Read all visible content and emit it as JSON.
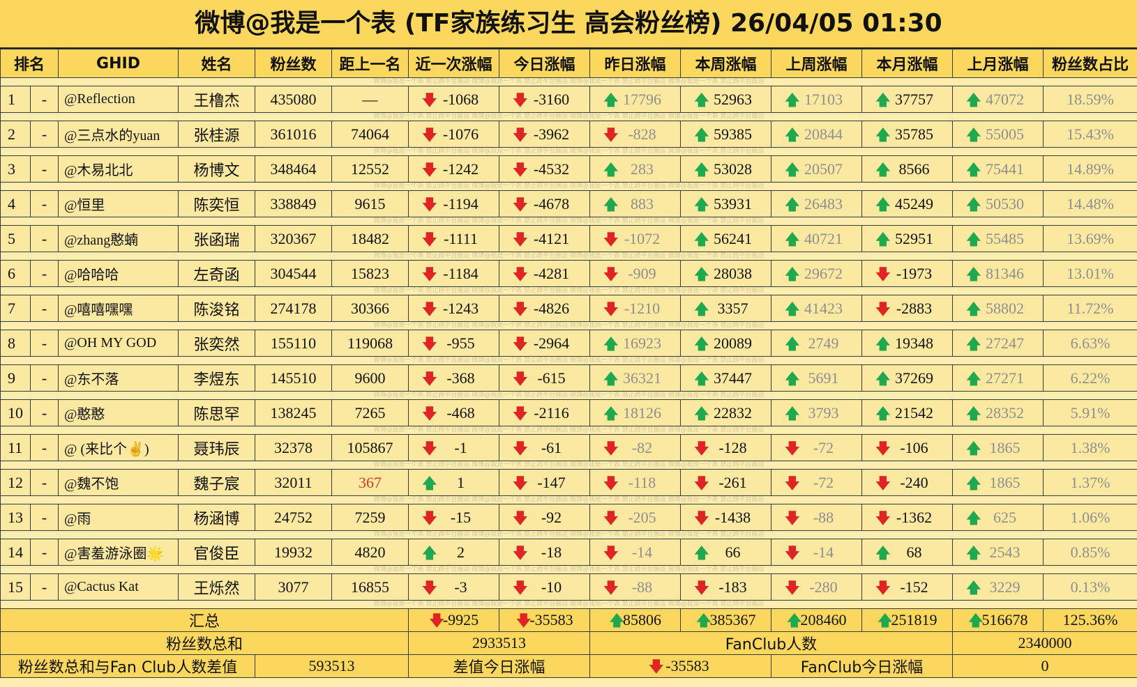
{
  "title": "微博@我是一个表 (TF家族练习生 高会粉丝榜)  26/04/05 01:30",
  "headers": [
    "排名",
    "GHID",
    "姓名",
    "粉丝数",
    "距上一名",
    "近一次涨幅",
    "今日涨幅",
    "昨日涨幅",
    "本周涨幅",
    "上周涨幅",
    "本月涨幅",
    "上月涨幅",
    "粉丝数占比"
  ],
  "watermark": "微博@我是一个表     禁止跨平台搬运     微博@我是一个表     禁止跨平台搬运     微博@我是一个表     禁止跨平台搬运     微博@我是一个表     禁止跨平台搬运",
  "rows": [
    {
      "rank": "1",
      "change": "-",
      "ghid": "@Reflection",
      "name": "王橹杰",
      "fans": "435080",
      "gap": "—",
      "recent": "-1068",
      "today": "-3160",
      "yesterday": "17796",
      "week": "52963",
      "last_week": "17103",
      "month": "37757",
      "last_month": "47072",
      "share": "18.59%"
    },
    {
      "rank": "2",
      "change": "-",
      "ghid": "@三点水的yuan",
      "name": "张桂源",
      "fans": "361016",
      "gap": "74064",
      "recent": "-1076",
      "today": "-3962",
      "yesterday": "-828",
      "week": "59385",
      "last_week": "20844",
      "month": "35785",
      "last_month": "55005",
      "share": "15.43%"
    },
    {
      "rank": "3",
      "change": "-",
      "ghid": "@木易北北",
      "name": "杨博文",
      "fans": "348464",
      "gap": "12552",
      "recent": "-1242",
      "today": "-4532",
      "yesterday": "283",
      "week": "53028",
      "last_week": "20507",
      "month": "8566",
      "last_month": "75441",
      "share": "14.89%"
    },
    {
      "rank": "4",
      "change": "-",
      "ghid": "@恒里",
      "name": "陈奕恒",
      "fans": "338849",
      "gap": "9615",
      "recent": "-1194",
      "today": "-4678",
      "yesterday": "883",
      "week": "53931",
      "last_week": "26483",
      "month": "45249",
      "last_month": "50530",
      "share": "14.48%"
    },
    {
      "rank": "5",
      "change": "-",
      "ghid": "@zhang憨蝻",
      "name": "张函瑞",
      "fans": "320367",
      "gap": "18482",
      "recent": "-1111",
      "today": "-4121",
      "yesterday": "-1072",
      "week": "56241",
      "last_week": "40721",
      "month": "52951",
      "last_month": "55485",
      "share": "13.69%"
    },
    {
      "rank": "6",
      "change": "-",
      "ghid": "@哈哈哈",
      "name": "左奇函",
      "fans": "304544",
      "gap": "15823",
      "recent": "-1184",
      "today": "-4281",
      "yesterday": "-909",
      "week": "28038",
      "last_week": "29672",
      "month": "-1973",
      "last_month": "81346",
      "share": "13.01%"
    },
    {
      "rank": "7",
      "change": "-",
      "ghid": "@嘻嘻嘿嘿",
      "name": "陈浚铭",
      "fans": "274178",
      "gap": "30366",
      "recent": "-1243",
      "today": "-4826",
      "yesterday": "-1210",
      "week": "3357",
      "last_week": "41423",
      "month": "-2883",
      "last_month": "58802",
      "share": "11.72%"
    },
    {
      "rank": "8",
      "change": "-",
      "ghid": "@OH MY GOD",
      "name": "张奕然",
      "fans": "155110",
      "gap": "119068",
      "recent": "-955",
      "today": "-2964",
      "yesterday": "16923",
      "week": "20089",
      "last_week": "2749",
      "month": "19348",
      "last_month": "27247",
      "share": "6.63%"
    },
    {
      "rank": "9",
      "change": "-",
      "ghid": "@东不落",
      "name": "李煜东",
      "fans": "145510",
      "gap": "9600",
      "recent": "-368",
      "today": "-615",
      "yesterday": "36321",
      "week": "37447",
      "last_week": "5691",
      "month": "37269",
      "last_month": "27271",
      "share": "6.22%"
    },
    {
      "rank": "10",
      "change": "-",
      "ghid": "@憨憨",
      "name": "陈思罕",
      "fans": "138245",
      "gap": "7265",
      "recent": "-468",
      "today": "-2116",
      "yesterday": "18126",
      "week": "22832",
      "last_week": "3793",
      "month": "21542",
      "last_month": "28352",
      "share": "5.91%"
    },
    {
      "rank": "11",
      "change": "-",
      "ghid": "@ (来比个✌)",
      "name": "聂玮辰",
      "fans": "32378",
      "gap": "105867",
      "recent": "-1",
      "today": "-61",
      "yesterday": "-82",
      "week": "-128",
      "last_week": "-72",
      "month": "-106",
      "last_month": "1865",
      "share": "1.38%"
    },
    {
      "rank": "12",
      "change": "-",
      "ghid": "@魏不饱",
      "name": "魏子宸",
      "fans": "32011",
      "gap": "367",
      "recent": "1",
      "today": "-147",
      "yesterday": "-118",
      "week": "-261",
      "last_week": "-72",
      "month": "-240",
      "last_month": "1865",
      "share": "1.37%"
    },
    {
      "rank": "13",
      "change": "-",
      "ghid": "@雨",
      "name": "杨涵博",
      "fans": "24752",
      "gap": "7259",
      "recent": "-15",
      "today": "-92",
      "yesterday": "-205",
      "week": "-1438",
      "last_week": "-88",
      "month": "-1362",
      "last_month": "625",
      "share": "1.06%"
    },
    {
      "rank": "14",
      "change": "-",
      "ghid": "@害羞游泳圈🌟",
      "name": "官俊臣",
      "fans": "19932",
      "gap": "4820",
      "recent": "2",
      "today": "-18",
      "yesterday": "-14",
      "week": "66",
      "last_week": "-14",
      "month": "68",
      "last_month": "2543",
      "share": "0.85%"
    },
    {
      "rank": "15",
      "change": "-",
      "ghid": "@Cactus Kat",
      "name": "王烁然",
      "fans": "3077",
      "gap": "16855",
      "recent": "-3",
      "today": "-10",
      "yesterday": "-88",
      "week": "-183",
      "last_week": "-280",
      "month": "-152",
      "last_month": "3229",
      "share": "0.13%"
    }
  ],
  "summary": {
    "label": "汇总",
    "recent": "-9925",
    "today": "-35583",
    "yesterday": "85806",
    "week": "385367",
    "last_week": "208460",
    "month": "251819",
    "last_month": "516678",
    "share": "125.36%"
  },
  "totals": {
    "fans_sum_label": "粉丝数总和",
    "fans_sum": "2933513",
    "fanclub_label": "FanClub人数",
    "fanclub": "2340000",
    "diff_label": "粉丝数总和与Fan Club人数差值",
    "diff": "593513",
    "diff_today_label": "差值今日涨幅",
    "diff_today": "-35583",
    "fanclub_today_label": "FanClub今日涨幅",
    "fanclub_today": "0"
  },
  "icons": {
    "up": "arrow-up-icon",
    "down": "arrow-down-icon"
  },
  "colors": {
    "header_bg": "#fbd75e",
    "row_bg": "#fbe9a2",
    "up": "#1fa84d",
    "down": "#e02323",
    "highlight_gap": "#d43b2a"
  }
}
